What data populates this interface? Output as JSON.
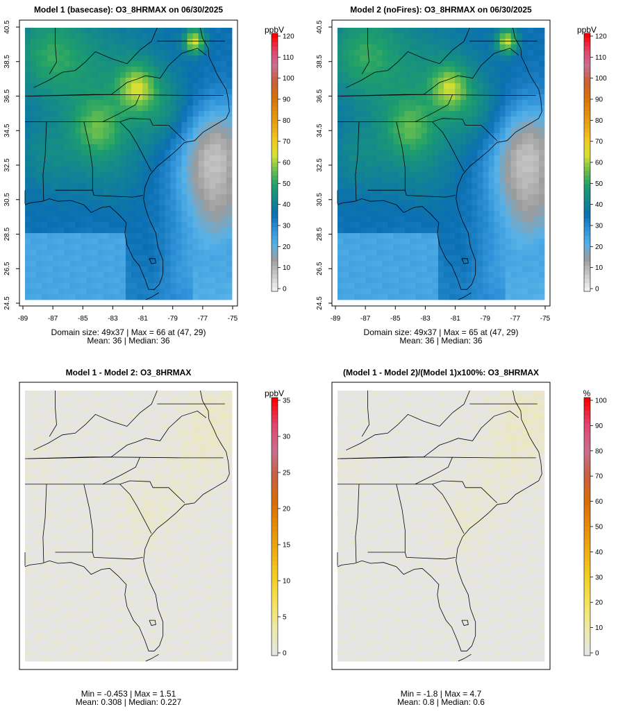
{
  "chart_data": [
    {
      "type": "heatmap",
      "title": "Model 1 (basecase): O3_8HRMAX on 06/30/2025",
      "unit": "ppbV",
      "domain_note": "Domain size: 49x37 | Max = 66 at (47, 29)",
      "stats_note": "Mean: 36 |  Median: 36",
      "x_ticks": [
        "-89",
        "-87",
        "-85",
        "-83",
        "-81",
        "-79",
        "-77",
        "-75"
      ],
      "y_ticks": [
        "24.5",
        "26.5",
        "28.5",
        "30.5",
        "32.5",
        "34.5",
        "36.5",
        "38.5",
        "40.5"
      ],
      "colorbar_ticks": [
        "0",
        "10",
        "20",
        "30",
        "40",
        "50",
        "60",
        "70",
        "80",
        "90",
        "100",
        "110",
        "120"
      ],
      "colorbar_range": [
        0,
        120
      ],
      "colorbar_colors": [
        "#efefef",
        "#c8c8c8",
        "#9c9c9c",
        "#56b2e8",
        "#2f92d8",
        "#0b6fb2",
        "#14898b",
        "#1fa06a",
        "#6cc04c",
        "#d7e033",
        "#f2c81d",
        "#e8a417",
        "#e08a0b",
        "#d66d0a",
        "#c8603d",
        "#c97090",
        "#e0446a",
        "#ff0000"
      ],
      "grid": {
        "x_range": [
          -89.7,
          -75.3
        ],
        "y_range": [
          24.6,
          40.5
        ],
        "domain_size": [
          49,
          37
        ],
        "max": 66,
        "max_location": [
          47,
          29
        ],
        "mean": 36,
        "median": 36,
        "background": 35,
        "hotspots": [
          {
            "lon": -77.9,
            "lat": 39.7,
            "value": 66,
            "radius": 0.5
          },
          {
            "lon": -81.9,
            "lat": 37.0,
            "value": 57,
            "radius": 0.9
          },
          {
            "lon": -88.0,
            "lat": 39.0,
            "value": 50,
            "radius": 1.8
          },
          {
            "lon": -84.7,
            "lat": 34.6,
            "value": 50,
            "radius": 1.2
          },
          {
            "lon": -84.0,
            "lat": 37.2,
            "value": 45,
            "radius": 2.8
          },
          {
            "lon": -80.0,
            "lat": 35.6,
            "value": 44,
            "radius": 1.5
          },
          {
            "lon": -88.3,
            "lat": 33.0,
            "value": 42,
            "radius": 1.5
          },
          {
            "lon": -84.0,
            "lat": 32.0,
            "value": 40,
            "radius": 2.0
          },
          {
            "lon": -82.0,
            "lat": 28.0,
            "value": 38,
            "radius": 1.5
          },
          {
            "lon": -80.8,
            "lat": 26.7,
            "value": 38,
            "radius": 0.9
          },
          {
            "lon": -77.0,
            "lat": 32.0,
            "value": 20,
            "radius": 1.8
          },
          {
            "lon": -76.2,
            "lat": 34.0,
            "value": 17,
            "radius": 1.8
          },
          {
            "lon": -76.0,
            "lat": 29.5,
            "value": 20,
            "radius": 1.8
          },
          {
            "lon": -83.5,
            "lat": 27.0,
            "value": 30,
            "radius": 2.2
          },
          {
            "lon": -78.0,
            "lat": 26.0,
            "value": 26,
            "radius": 2.0
          }
        ]
      }
    },
    {
      "type": "heatmap",
      "title": "Model 2 (noFires): O3_8HRMAX on 06/30/2025",
      "unit": "ppbV",
      "domain_note": "Domain size: 49x37 | Max = 65 at (47, 29)",
      "stats_note": "Mean: 36 |  Median: 36",
      "x_ticks": [
        "-89",
        "-87",
        "-85",
        "-83",
        "-81",
        "-79",
        "-77",
        "-75"
      ],
      "y_ticks": [
        "24.5",
        "26.5",
        "28.5",
        "30.5",
        "32.5",
        "34.5",
        "36.5",
        "38.5",
        "40.5"
      ],
      "colorbar_ticks": [
        "0",
        "10",
        "20",
        "30",
        "40",
        "50",
        "60",
        "70",
        "80",
        "90",
        "100",
        "110",
        "120"
      ],
      "colorbar_range": [
        0,
        120
      ],
      "colorbar_colors": [
        "#efefef",
        "#c8c8c8",
        "#9c9c9c",
        "#56b2e8",
        "#2f92d8",
        "#0b6fb2",
        "#14898b",
        "#1fa06a",
        "#6cc04c",
        "#d7e033",
        "#f2c81d",
        "#e8a417",
        "#e08a0b",
        "#d66d0a",
        "#c8603d",
        "#c97090",
        "#e0446a",
        "#ff0000"
      ],
      "grid": {
        "x_range": [
          -89.7,
          -75.3
        ],
        "y_range": [
          24.6,
          40.5
        ],
        "domain_size": [
          49,
          37
        ],
        "max": 65,
        "max_location": [
          47,
          29
        ],
        "mean": 36,
        "median": 36,
        "background": 35,
        "hotspots": [
          {
            "lon": -77.9,
            "lat": 39.7,
            "value": 65,
            "radius": 0.5
          },
          {
            "lon": -81.9,
            "lat": 37.0,
            "value": 56,
            "radius": 0.9
          },
          {
            "lon": -88.0,
            "lat": 39.0,
            "value": 50,
            "radius": 1.8
          },
          {
            "lon": -84.7,
            "lat": 34.6,
            "value": 49,
            "radius": 1.2
          },
          {
            "lon": -84.0,
            "lat": 37.2,
            "value": 45,
            "radius": 2.8
          },
          {
            "lon": -80.0,
            "lat": 35.6,
            "value": 43,
            "radius": 1.5
          },
          {
            "lon": -88.3,
            "lat": 33.0,
            "value": 42,
            "radius": 1.5
          },
          {
            "lon": -84.0,
            "lat": 32.0,
            "value": 40,
            "radius": 2.0
          },
          {
            "lon": -82.0,
            "lat": 28.0,
            "value": 38,
            "radius": 1.5
          },
          {
            "lon": -80.8,
            "lat": 26.7,
            "value": 38,
            "radius": 0.9
          },
          {
            "lon": -77.0,
            "lat": 32.0,
            "value": 20,
            "radius": 1.8
          },
          {
            "lon": -76.2,
            "lat": 34.0,
            "value": 17,
            "radius": 1.8
          },
          {
            "lon": -76.0,
            "lat": 29.5,
            "value": 20,
            "radius": 1.8
          },
          {
            "lon": -83.5,
            "lat": 27.0,
            "value": 30,
            "radius": 2.2
          },
          {
            "lon": -78.0,
            "lat": 26.0,
            "value": 26,
            "radius": 2.0
          }
        ]
      }
    },
    {
      "type": "heatmap",
      "title": "Model 1 - Model 2: O3_8HRMAX",
      "unit": "ppbV",
      "stats_note_1": "Min = -0.453 | Max = 1.51",
      "stats_note_2": "Mean: 0.308 |  Median: 0.227",
      "colorbar_ticks": [
        "0",
        "5",
        "10",
        "15",
        "20",
        "25",
        "30",
        "35"
      ],
      "colorbar_range": [
        0,
        35
      ],
      "colorbar_colors": [
        "#e5e5e5",
        "#eee9a6",
        "#f5e35c",
        "#f4cf23",
        "#eeaf12",
        "#e58d08",
        "#d96c09",
        "#c8603d",
        "#c86f8f",
        "#e24672",
        "#ff0000"
      ],
      "grid": {
        "min": -0.453,
        "max": 1.51,
        "mean": 0.308,
        "median": 0.227,
        "background": 0.25,
        "hotspots": [
          {
            "lon": -76.0,
            "lat": 39.5,
            "value": 1.5,
            "radius": 1.8
          },
          {
            "lon": -77.5,
            "lat": 37.0,
            "value": 1.2,
            "radius": 1.5
          },
          {
            "lon": -81.0,
            "lat": 32.5,
            "value": 1.0,
            "radius": 1.2
          },
          {
            "lon": -79.5,
            "lat": 34.5,
            "value": 0.9,
            "radius": 1.3
          },
          {
            "lon": -82.0,
            "lat": 33.8,
            "value": 0.8,
            "radius": 1.0
          },
          {
            "lon": -88.5,
            "lat": 36.3,
            "value": 0.8,
            "radius": 0.8
          }
        ]
      }
    },
    {
      "type": "heatmap",
      "title": "(Model 1 - Model 2)/(Model 1)x100%: O3_8HRMAX",
      "unit": "%",
      "stats_note_1": "Min = -1.8 | Max = 4.7",
      "stats_note_2": "Mean: 0.8 |  Median: 0.6",
      "colorbar_ticks": [
        "0",
        "10",
        "20",
        "30",
        "40",
        "50",
        "60",
        "70",
        "80",
        "90",
        "100"
      ],
      "colorbar_range": [
        0,
        100
      ],
      "colorbar_colors": [
        "#e5e5e5",
        "#eee9a6",
        "#f5e35c",
        "#f4cf23",
        "#eeaf12",
        "#e58d08",
        "#d96c09",
        "#c8603d",
        "#c86f8f",
        "#e24672",
        "#ff0000"
      ],
      "grid": {
        "min": -1.8,
        "max": 4.7,
        "mean": 0.8,
        "median": 0.6,
        "background": 0.5,
        "hotspots": [
          {
            "lon": -76.0,
            "lat": 39.5,
            "value": 4.7,
            "radius": 1.8
          },
          {
            "lon": -77.5,
            "lat": 37.0,
            "value": 3.5,
            "radius": 1.5
          },
          {
            "lon": -81.0,
            "lat": 32.5,
            "value": 3.2,
            "radius": 1.2
          },
          {
            "lon": -79.5,
            "lat": 34.5,
            "value": 2.5,
            "radius": 1.3
          },
          {
            "lon": -88.5,
            "lat": 36.3,
            "value": 2.5,
            "radius": 0.8
          }
        ]
      }
    }
  ]
}
